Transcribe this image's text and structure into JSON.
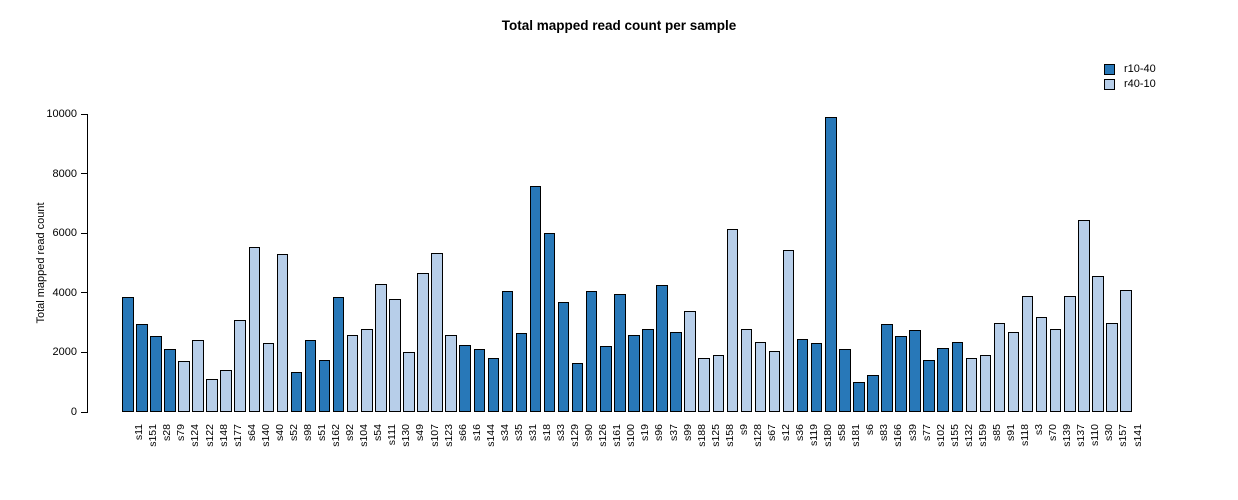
{
  "chart_data": {
    "type": "bar",
    "title": "Total mapped read count per sample",
    "xlabel": "",
    "ylabel": "Total mapped read count",
    "ylim": [
      0,
      10000
    ],
    "yticks": [
      0,
      2000,
      4000,
      6000,
      8000,
      10000
    ],
    "grid": false,
    "legend_position": "topright",
    "legend": [
      {
        "label": "r10-40",
        "color": "#2878B8"
      },
      {
        "label": "r40-10",
        "color": "#B7CEE9"
      }
    ],
    "bars": [
      {
        "sample": "s11",
        "series": "r10-40",
        "value": 3850
      },
      {
        "sample": "s151",
        "series": "r10-40",
        "value": 2950
      },
      {
        "sample": "s28",
        "series": "r10-40",
        "value": 2550
      },
      {
        "sample": "s79",
        "series": "r10-40",
        "value": 2100
      },
      {
        "sample": "s124",
        "series": "r40-10",
        "value": 1700
      },
      {
        "sample": "s122",
        "series": "r40-10",
        "value": 2400
      },
      {
        "sample": "s148",
        "series": "r40-10",
        "value": 1100
      },
      {
        "sample": "s177",
        "series": "r40-10",
        "value": 1400
      },
      {
        "sample": "s64",
        "series": "r40-10",
        "value": 3100
      },
      {
        "sample": "s140",
        "series": "r40-10",
        "value": 5550
      },
      {
        "sample": "s40",
        "series": "r40-10",
        "value": 2300
      },
      {
        "sample": "s52",
        "series": "r40-10",
        "value": 5300
      },
      {
        "sample": "s98",
        "series": "r10-40",
        "value": 1350
      },
      {
        "sample": "s51",
        "series": "r10-40",
        "value": 2400
      },
      {
        "sample": "s162",
        "series": "r10-40",
        "value": 1750
      },
      {
        "sample": "s92",
        "series": "r10-40",
        "value": 3850
      },
      {
        "sample": "s104",
        "series": "r40-10",
        "value": 2600
      },
      {
        "sample": "s54",
        "series": "r40-10",
        "value": 2800
      },
      {
        "sample": "s111",
        "series": "r40-10",
        "value": 4300
      },
      {
        "sample": "s130",
        "series": "r40-10",
        "value": 3800
      },
      {
        "sample": "s49",
        "series": "r40-10",
        "value": 2000
      },
      {
        "sample": "s107",
        "series": "r40-10",
        "value": 4650
      },
      {
        "sample": "s123",
        "series": "r40-10",
        "value": 5350
      },
      {
        "sample": "s66",
        "series": "r40-10",
        "value": 2600
      },
      {
        "sample": "s16",
        "series": "r10-40",
        "value": 2250
      },
      {
        "sample": "s144",
        "series": "r10-40",
        "value": 2100
      },
      {
        "sample": "s34",
        "series": "r10-40",
        "value": 1800
      },
      {
        "sample": "s35",
        "series": "r10-40",
        "value": 4050
      },
      {
        "sample": "s31",
        "series": "r10-40",
        "value": 2650
      },
      {
        "sample": "s18",
        "series": "r10-40",
        "value": 7600
      },
      {
        "sample": "s33",
        "series": "r10-40",
        "value": 6000
      },
      {
        "sample": "s129",
        "series": "r10-40",
        "value": 3700
      },
      {
        "sample": "s90",
        "series": "r10-40",
        "value": 1650
      },
      {
        "sample": "s126",
        "series": "r10-40",
        "value": 4050
      },
      {
        "sample": "s161",
        "series": "r10-40",
        "value": 2200
      },
      {
        "sample": "s100",
        "series": "r10-40",
        "value": 3950
      },
      {
        "sample": "s19",
        "series": "r10-40",
        "value": 2600
      },
      {
        "sample": "s96",
        "series": "r10-40",
        "value": 2800
      },
      {
        "sample": "s37",
        "series": "r10-40",
        "value": 4250
      },
      {
        "sample": "s99",
        "series": "r10-40",
        "value": 2700
      },
      {
        "sample": "s188",
        "series": "r40-10",
        "value": 3400
      },
      {
        "sample": "s125",
        "series": "r40-10",
        "value": 1800
      },
      {
        "sample": "s158",
        "series": "r40-10",
        "value": 1900
      },
      {
        "sample": "s9",
        "series": "r40-10",
        "value": 6150
      },
      {
        "sample": "s128",
        "series": "r40-10",
        "value": 2800
      },
      {
        "sample": "s67",
        "series": "r40-10",
        "value": 2350
      },
      {
        "sample": "s12",
        "series": "r40-10",
        "value": 2050
      },
      {
        "sample": "s36",
        "series": "r40-10",
        "value": 5450
      },
      {
        "sample": "s119",
        "series": "r10-40",
        "value": 2450
      },
      {
        "sample": "s180",
        "series": "r10-40",
        "value": 2300
      },
      {
        "sample": "s58",
        "series": "r10-40",
        "value": 9900
      },
      {
        "sample": "s181",
        "series": "r10-40",
        "value": 2100
      },
      {
        "sample": "s6",
        "series": "r10-40",
        "value": 1000
      },
      {
        "sample": "s83",
        "series": "r10-40",
        "value": 1250
      },
      {
        "sample": "s166",
        "series": "r10-40",
        "value": 2950
      },
      {
        "sample": "s39",
        "series": "r10-40",
        "value": 2550
      },
      {
        "sample": "s77",
        "series": "r10-40",
        "value": 2750
      },
      {
        "sample": "s102",
        "series": "r10-40",
        "value": 1750
      },
      {
        "sample": "s155",
        "series": "r10-40",
        "value": 2150
      },
      {
        "sample": "s132",
        "series": "r10-40",
        "value": 2350
      },
      {
        "sample": "s159",
        "series": "r40-10",
        "value": 1800
      },
      {
        "sample": "s85",
        "series": "r40-10",
        "value": 1900
      },
      {
        "sample": "s91",
        "series": "r40-10",
        "value": 3000
      },
      {
        "sample": "s118",
        "series": "r40-10",
        "value": 2700
      },
      {
        "sample": "s3",
        "series": "r40-10",
        "value": 3900
      },
      {
        "sample": "s70",
        "series": "r40-10",
        "value": 3200
      },
      {
        "sample": "s139",
        "series": "r40-10",
        "value": 2800
      },
      {
        "sample": "s137",
        "series": "r40-10",
        "value": 3900
      },
      {
        "sample": "s110",
        "series": "r40-10",
        "value": 6450
      },
      {
        "sample": "s30",
        "series": "r40-10",
        "value": 4550
      },
      {
        "sample": "s157",
        "series": "r40-10",
        "value": 3000
      },
      {
        "sample": "s141",
        "series": "r40-10",
        "value": 4100
      }
    ]
  }
}
